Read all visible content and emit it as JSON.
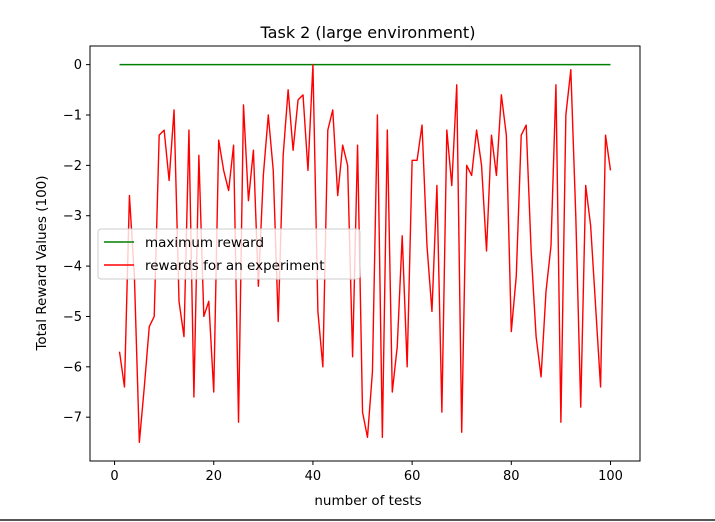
{
  "chart_data": {
    "type": "line",
    "title": "Task 2 (large environment)",
    "xlabel": "number of tests",
    "ylabel": "Total Reward Values (100)",
    "xlim": [
      -4.95,
      105.95
    ],
    "ylim": [
      -7.87,
      0.37
    ],
    "xticks": [
      0,
      20,
      40,
      60,
      80,
      100
    ],
    "yticks": [
      0,
      -1,
      -2,
      -3,
      -4,
      -5,
      -6,
      -7
    ],
    "xtick_labels": [
      "0",
      "20",
      "40",
      "60",
      "80",
      "100"
    ],
    "ytick_labels": [
      "0",
      "−1",
      "−2",
      "−3",
      "−4",
      "−5",
      "−6",
      "−7"
    ],
    "grid": false,
    "legend_position": "center-left",
    "x": [
      1,
      2,
      3,
      4,
      5,
      6,
      7,
      8,
      9,
      10,
      11,
      12,
      13,
      14,
      15,
      16,
      17,
      18,
      19,
      20,
      21,
      22,
      23,
      24,
      25,
      26,
      27,
      28,
      29,
      30,
      31,
      32,
      33,
      34,
      35,
      36,
      37,
      38,
      39,
      40,
      41,
      42,
      43,
      44,
      45,
      46,
      47,
      48,
      49,
      50,
      51,
      52,
      53,
      54,
      55,
      56,
      57,
      58,
      59,
      60,
      61,
      62,
      63,
      64,
      65,
      66,
      67,
      68,
      69,
      70,
      71,
      72,
      73,
      74,
      75,
      76,
      77,
      78,
      79,
      80,
      81,
      82,
      83,
      84,
      85,
      86,
      87,
      88,
      89,
      90,
      91,
      92,
      93,
      94,
      95,
      96,
      97,
      98,
      99,
      100
    ],
    "series": [
      {
        "name": "maximum reward",
        "color": "#008000",
        "values": [
          0,
          0,
          0,
          0,
          0,
          0,
          0,
          0,
          0,
          0,
          0,
          0,
          0,
          0,
          0,
          0,
          0,
          0,
          0,
          0,
          0,
          0,
          0,
          0,
          0,
          0,
          0,
          0,
          0,
          0,
          0,
          0,
          0,
          0,
          0,
          0,
          0,
          0,
          0,
          0,
          0,
          0,
          0,
          0,
          0,
          0,
          0,
          0,
          0,
          0,
          0,
          0,
          0,
          0,
          0,
          0,
          0,
          0,
          0,
          0,
          0,
          0,
          0,
          0,
          0,
          0,
          0,
          0,
          0,
          0,
          0,
          0,
          0,
          0,
          0,
          0,
          0,
          0,
          0,
          0,
          0,
          0,
          0,
          0,
          0,
          0,
          0,
          0,
          0,
          0,
          0,
          0,
          0,
          0,
          0,
          0,
          0,
          0,
          0,
          0
        ]
      },
      {
        "name": "rewards for an experiment",
        "color": "#ff0000",
        "values": [
          -5.7,
          -6.4,
          -2.6,
          -4.2,
          -7.5,
          -6.4,
          -5.2,
          -5.0,
          -1.4,
          -1.3,
          -2.3,
          -0.9,
          -4.7,
          -5.4,
          -1.3,
          -6.6,
          -1.8,
          -5.0,
          -4.7,
          -6.5,
          -1.5,
          -2.1,
          -2.5,
          -1.6,
          -7.1,
          -0.8,
          -2.7,
          -1.7,
          -4.4,
          -2.2,
          -1.0,
          -2.1,
          -5.1,
          -1.8,
          -0.5,
          -1.7,
          -0.7,
          -0.6,
          -2.1,
          0.0,
          -4.9,
          -6.0,
          -1.3,
          -0.9,
          -2.6,
          -1.6,
          -2.0,
          -5.8,
          -1.6,
          -6.9,
          -7.4,
          -6.1,
          -1.0,
          -7.4,
          -1.3,
          -6.5,
          -5.6,
          -3.4,
          -6.0,
          -1.9,
          -1.9,
          -1.2,
          -3.6,
          -4.9,
          -2.4,
          -6.9,
          -1.3,
          -2.4,
          -0.4,
          -7.3,
          -2.0,
          -2.2,
          -1.3,
          -2.0,
          -3.7,
          -1.4,
          -2.2,
          -0.6,
          -1.4,
          -5.3,
          -4.2,
          -1.4,
          -1.2,
          -3.7,
          -5.4,
          -6.2,
          -4.5,
          -3.6,
          -0.4,
          -7.1,
          -1.0,
          -0.1,
          -3.0,
          -6.8,
          -2.4,
          -3.2,
          -4.8,
          -6.4,
          -1.4,
          -2.1
        ]
      }
    ]
  }
}
